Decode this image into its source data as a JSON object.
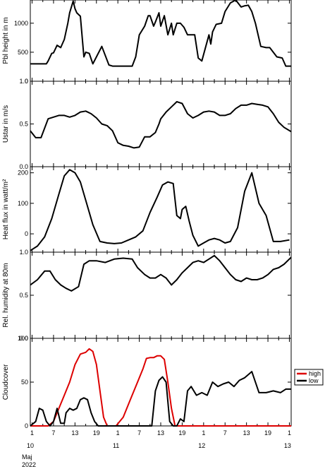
{
  "x_axis": {
    "ticks": [
      "1",
      "7",
      "13",
      "19",
      "1",
      "7",
      "13",
      "19",
      "1",
      "7",
      "13",
      "19",
      "1",
      "7",
      "13",
      "19",
      "1",
      "7",
      "13",
      "19",
      "1",
      "7",
      "13",
      "19",
      "1"
    ],
    "tick_hours": [
      1,
      7,
      13,
      19,
      25,
      31,
      37,
      43,
      49,
      55,
      61,
      67,
      73,
      79,
      85,
      91,
      97,
      103,
      109,
      115,
      121,
      127,
      133,
      139,
      145
    ],
    "tick_labels": [
      "1",
      "",
      "7",
      "",
      "13",
      "",
      "19",
      "",
      "1",
      "",
      "7",
      "",
      "13",
      "",
      "19",
      "",
      "1",
      "",
      "7",
      "",
      "13",
      "",
      "19",
      "",
      "1"
    ],
    "day_labels": [
      "10",
      "11",
      "12",
      "13"
    ],
    "month": "Maj",
    "year": "2022"
  },
  "chart_data": [
    {
      "type": "line",
      "ylabel": "Pbl height in m",
      "ylim": [
        0,
        1400
      ],
      "yticks": [
        "0",
        "500",
        "1000"
      ],
      "x_range": [
        0,
        146
      ],
      "series": [
        {
          "name": "",
          "color": "#000000",
          "x": [
            0,
            6,
            9,
            10,
            12,
            13,
            15,
            17,
            19,
            21,
            22,
            24,
            25,
            26,
            28,
            30,
            31,
            33,
            35,
            37,
            40,
            44,
            46,
            49,
            55,
            57,
            59,
            61,
            64,
            66,
            67,
            69,
            70,
            72,
            73,
            75,
            77,
            79,
            80,
            82,
            84,
            86,
            88,
            90,
            92,
            94,
            96,
            100,
            101,
            102,
            104,
            107,
            109,
            112,
            115,
            118,
            120,
            122,
            124,
            126,
            129,
            132,
            134,
            138,
            141,
            143,
            146
          ],
          "y": [
            300,
            300,
            300,
            350,
            480,
            490,
            620,
            580,
            720,
            1000,
            1180,
            1380,
            1250,
            1180,
            1120,
            420,
            500,
            480,
            300,
            420,
            600,
            280,
            260,
            260,
            260,
            260,
            420,
            800,
            950,
            1130,
            1130,
            950,
            1020,
            1180,
            950,
            1130,
            800,
            1000,
            800,
            1000,
            1000,
            930,
            800,
            800,
            800,
            400,
            350,
            800,
            640,
            850,
            980,
            1000,
            1200,
            1350,
            1400,
            1280,
            1300,
            1310,
            1200,
            1000,
            600,
            580,
            580,
            420,
            400,
            260,
            260
          ]
        }
      ]
    },
    {
      "type": "line",
      "ylabel": "Ustar in m/s",
      "ylim": [
        0,
        1.0
      ],
      "yticks": [
        "0.0",
        "0.5",
        "1.0"
      ],
      "x_range": [
        0,
        146
      ],
      "series": [
        {
          "name": "",
          "color": "#000000",
          "x": [
            0,
            3,
            6,
            10,
            13,
            16,
            19,
            22,
            25,
            28,
            31,
            34,
            37,
            40,
            43,
            46,
            49,
            52,
            55,
            58,
            61,
            64,
            67,
            70,
            72,
            73,
            76,
            79,
            82,
            85,
            88,
            91,
            94,
            97,
            100,
            103,
            106,
            109,
            112,
            115,
            118,
            121,
            124,
            127,
            130,
            133,
            136,
            139,
            142,
            146
          ],
          "y": [
            0.42,
            0.34,
            0.34,
            0.56,
            0.58,
            0.6,
            0.6,
            0.58,
            0.6,
            0.64,
            0.65,
            0.62,
            0.57,
            0.5,
            0.48,
            0.42,
            0.28,
            0.25,
            0.24,
            0.22,
            0.23,
            0.35,
            0.35,
            0.4,
            0.5,
            0.56,
            0.64,
            0.7,
            0.76,
            0.74,
            0.62,
            0.57,
            0.6,
            0.64,
            0.65,
            0.64,
            0.6,
            0.6,
            0.62,
            0.68,
            0.72,
            0.72,
            0.74,
            0.73,
            0.72,
            0.7,
            0.62,
            0.52,
            0.46,
            0.41
          ]
        }
      ]
    },
    {
      "type": "line",
      "ylabel": "Heat flux in watt/m²",
      "ylim": [
        -60,
        220
      ],
      "yticks": [
        "0",
        "100",
        "200"
      ],
      "x_range": [
        0,
        146
      ],
      "series": [
        {
          "name": "",
          "color": "#000000",
          "x": [
            0,
            4,
            8,
            12,
            16,
            19,
            22,
            25,
            28,
            31,
            35,
            39,
            43,
            47,
            51,
            55,
            59,
            63,
            67,
            71,
            74,
            77,
            80,
            82,
            84,
            85,
            87,
            89,
            91,
            94,
            97,
            100,
            103,
            106,
            109,
            112,
            116,
            120,
            124,
            128,
            132,
            136,
            140,
            145
          ],
          "y": [
            -55,
            -40,
            -10,
            50,
            130,
            190,
            210,
            200,
            170,
            110,
            30,
            -25,
            -30,
            -32,
            -30,
            -20,
            -10,
            10,
            70,
            120,
            160,
            170,
            165,
            60,
            50,
            80,
            90,
            40,
            -5,
            -40,
            -30,
            -20,
            -15,
            -20,
            -30,
            -25,
            20,
            140,
            200,
            100,
            60,
            -25,
            -25,
            -20
          ]
        }
      ]
    },
    {
      "type": "line",
      "ylabel": "Rel. humidity at 80m",
      "ylim": [
        0,
        1.0
      ],
      "yticks": [
        "0.0",
        "0.5",
        "1.0"
      ],
      "x_range": [
        0,
        146
      ],
      "series": [
        {
          "name": "",
          "color": "#000000",
          "x": [
            0,
            4,
            8,
            11,
            14,
            17,
            20,
            23,
            27,
            30,
            33,
            37,
            42,
            47,
            52,
            57,
            60,
            64,
            67,
            70,
            73,
            76,
            79,
            82,
            85,
            88,
            91,
            94,
            97,
            100,
            103,
            106,
            109,
            112,
            115,
            118,
            121,
            124,
            127,
            130,
            133,
            136,
            139,
            142,
            146
          ],
          "y": [
            0.62,
            0.68,
            0.78,
            0.78,
            0.68,
            0.62,
            0.58,
            0.55,
            0.6,
            0.86,
            0.9,
            0.9,
            0.88,
            0.92,
            0.93,
            0.92,
            0.82,
            0.74,
            0.7,
            0.7,
            0.74,
            0.7,
            0.62,
            0.68,
            0.76,
            0.82,
            0.88,
            0.9,
            0.88,
            0.92,
            0.96,
            0.9,
            0.82,
            0.74,
            0.68,
            0.66,
            0.7,
            0.68,
            0.68,
            0.7,
            0.74,
            0.8,
            0.82,
            0.86,
            0.94
          ]
        }
      ]
    },
    {
      "type": "line",
      "ylabel": "Cloudcover",
      "ylim": [
        0,
        100
      ],
      "yticks": [
        "0",
        "50",
        "100"
      ],
      "x_range": [
        0,
        146
      ],
      "legend": "right",
      "series": [
        {
          "name": "high",
          "color": "#dd0000",
          "x": [
            0,
            10,
            13,
            16,
            19,
            22,
            25,
            28,
            31,
            33,
            35,
            37,
            39,
            41,
            43,
            46,
            48,
            52,
            56,
            60,
            63,
            65,
            67,
            69,
            71,
            73,
            75,
            77,
            79,
            81,
            83,
            86,
            88,
            92,
            98,
            110,
            146
          ],
          "y": [
            0,
            0,
            5,
            20,
            35,
            50,
            70,
            82,
            84,
            88,
            85,
            70,
            40,
            10,
            0,
            0,
            0,
            10,
            30,
            50,
            65,
            77,
            78,
            78,
            80,
            80,
            76,
            50,
            20,
            0,
            0,
            0,
            0,
            0,
            0,
            0,
            0
          ]
        },
        {
          "name": "low",
          "color": "#000000",
          "x": [
            0,
            3,
            5,
            7,
            9,
            11,
            13,
            15,
            17,
            19,
            20,
            22,
            24,
            26,
            28,
            30,
            32,
            34,
            36,
            38,
            40,
            42,
            44,
            46,
            50,
            64,
            68,
            70,
            72,
            74,
            76,
            78,
            80,
            82,
            84,
            86,
            88,
            90,
            93,
            96,
            99,
            102,
            105,
            108,
            111,
            114,
            117,
            120,
            124,
            128,
            132,
            136,
            140,
            143,
            146
          ],
          "y": [
            0,
            5,
            20,
            18,
            5,
            0,
            5,
            20,
            3,
            3,
            15,
            20,
            18,
            20,
            30,
            32,
            30,
            15,
            5,
            0,
            0,
            0,
            0,
            0,
            0,
            0,
            0,
            40,
            52,
            56,
            50,
            5,
            0,
            0,
            8,
            5,
            40,
            45,
            35,
            38,
            35,
            50,
            45,
            48,
            50,
            45,
            52,
            55,
            62,
            38,
            38,
            40,
            38,
            42,
            42
          ]
        }
      ]
    }
  ]
}
